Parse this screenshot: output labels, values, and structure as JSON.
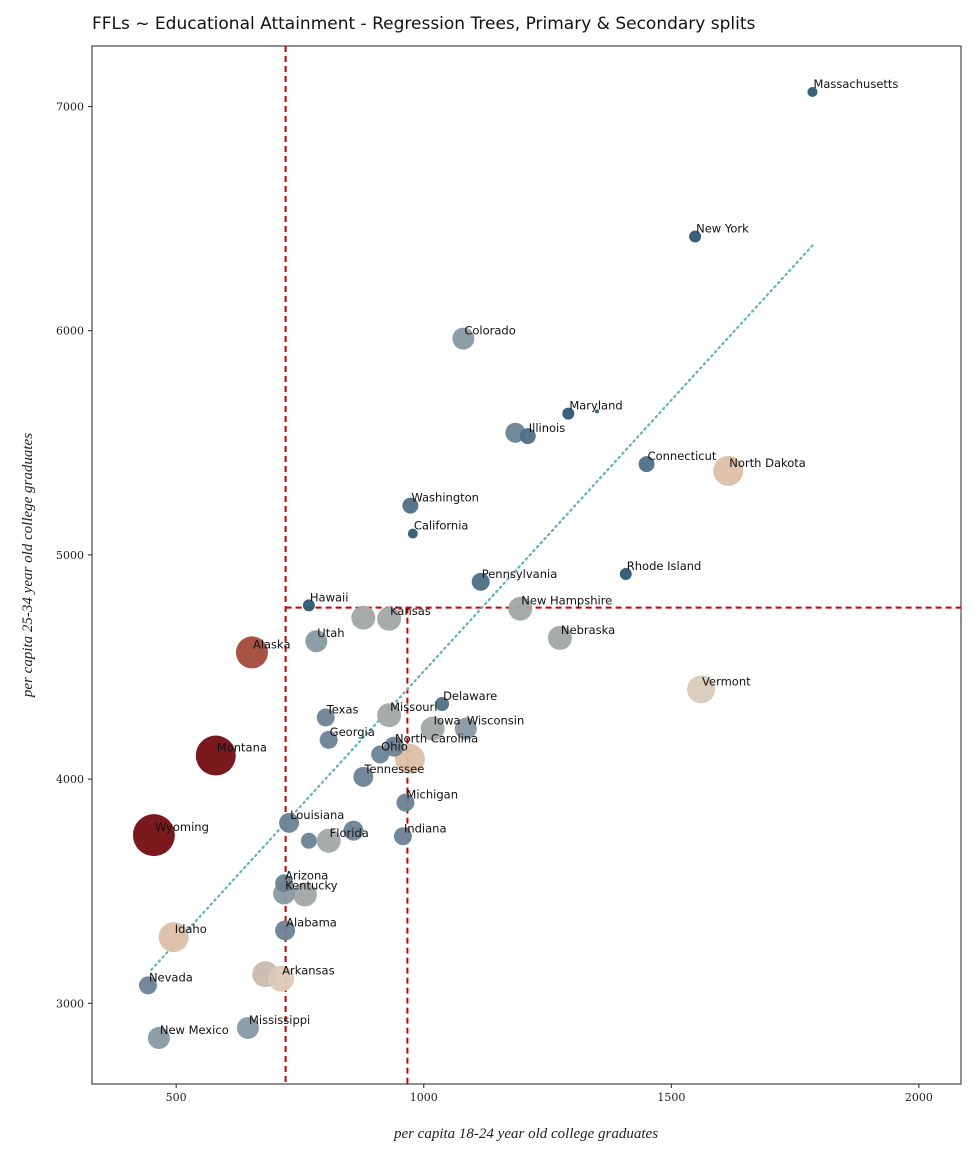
{
  "chart_data": {
    "type": "scatter",
    "title": "FFLs ~ Educational Attainment - Regression Trees, Primary & Secondary splits",
    "xlabel": "per capita 18-24 year old college graduates",
    "ylabel": "per capita 25-34 year old college graduates",
    "xlim": [
      330,
      2085
    ],
    "ylim": [
      2640,
      7270
    ],
    "xticks": [
      500,
      1000,
      1500,
      2000
    ],
    "yticks": [
      3000,
      4000,
      5000,
      6000,
      7000
    ],
    "grid": false,
    "splits": {
      "vertical": [
        721,
        967
      ],
      "horizontal": [
        4765
      ]
    },
    "trend_line": {
      "x": [
        450,
        1785
      ],
      "y": [
        3150,
        6380
      ]
    },
    "colors": {
      "dark_blue": "#2e5874",
      "blue": "#4f6f85",
      "slate": "#6b8292",
      "gray_blue": "#8799a3",
      "gray": "#a2a7a5",
      "beige": "#c9bcae",
      "peach": "#dcbfa7",
      "rust": "#a14a3a",
      "dark_red": "#730d12",
      "split_line": "#cc0000",
      "trend_line": "#5fb3b8"
    },
    "points": [
      {
        "state": "Massachusetts",
        "x": 1785,
        "y": 7065,
        "size": 5,
        "color": "#2e5874",
        "labeled": true
      },
      {
        "state": "New York",
        "x": 1548,
        "y": 6420,
        "size": 6,
        "color": "#2e5874",
        "labeled": true
      },
      {
        "state": "Colorado",
        "x": 1080,
        "y": 5965,
        "size": 11,
        "color": "#8799a3",
        "labeled": true
      },
      {
        "state": "Maryland",
        "x": 1292,
        "y": 5630,
        "size": 6,
        "color": "#2e5874",
        "labeled": true
      },
      {
        "state": "",
        "x": 1350,
        "y": 5640,
        "size": 2,
        "color": "#2e5874",
        "labeled": false
      },
      {
        "state": "Illinois",
        "x": 1210,
        "y": 5530,
        "size": 8,
        "color": "#4f6f85",
        "labeled": true
      },
      {
        "state": "",
        "x": 1185,
        "y": 5545,
        "size": 10,
        "color": "#6b8292",
        "labeled": false
      },
      {
        "state": "Connecticut",
        "x": 1450,
        "y": 5405,
        "size": 8,
        "color": "#4f6f85",
        "labeled": true
      },
      {
        "state": "North Dakota",
        "x": 1615,
        "y": 5375,
        "size": 15,
        "color": "#dcbfa7",
        "labeled": true
      },
      {
        "state": "Washington",
        "x": 973,
        "y": 5220,
        "size": 8,
        "color": "#4f6f85",
        "labeled": true
      },
      {
        "state": "California",
        "x": 978,
        "y": 5095,
        "size": 5,
        "color": "#2e5874",
        "labeled": true
      },
      {
        "state": "Rhode Island",
        "x": 1408,
        "y": 4915,
        "size": 6,
        "color": "#2e5874",
        "labeled": true
      },
      {
        "state": "Pennsylvania",
        "x": 1115,
        "y": 4880,
        "size": 9,
        "color": "#4f6f85",
        "labeled": true
      },
      {
        "state": "Hawaii",
        "x": 768,
        "y": 4775,
        "size": 6,
        "color": "#2e5874",
        "labeled": true
      },
      {
        "state": "New Hampshire",
        "x": 1195,
        "y": 4760,
        "size": 12,
        "color": "#a2a7a5",
        "labeled": true
      },
      {
        "state": "",
        "x": 878,
        "y": 4720,
        "size": 12,
        "color": "#a2a7a5",
        "labeled": false
      },
      {
        "state": "Kansas",
        "x": 930,
        "y": 4715,
        "size": 12,
        "color": "#a2a7a5",
        "labeled": true
      },
      {
        "state": "Utah",
        "x": 783,
        "y": 4615,
        "size": 11,
        "color": "#8799a3",
        "labeled": true
      },
      {
        "state": "Nebraska",
        "x": 1275,
        "y": 4630,
        "size": 12,
        "color": "#a2a7a5",
        "labeled": true
      },
      {
        "state": "Alaska",
        "x": 653,
        "y": 4565,
        "size": 16,
        "color": "#a14a3a",
        "labeled": true
      },
      {
        "state": "Vermont",
        "x": 1560,
        "y": 4400,
        "size": 14,
        "color": "#d8cbbb",
        "labeled": true
      },
      {
        "state": "Delaware",
        "x": 1037,
        "y": 4335,
        "size": 7,
        "color": "#4f6f85",
        "labeled": true
      },
      {
        "state": "Missouri",
        "x": 930,
        "y": 4285,
        "size": 12,
        "color": "#a2a7a5",
        "labeled": true
      },
      {
        "state": "Texas",
        "x": 802,
        "y": 4275,
        "size": 9,
        "color": "#6b8292",
        "labeled": true
      },
      {
        "state": "Iowa",
        "x": 1018,
        "y": 4225,
        "size": 12,
        "color": "#a2a7a5",
        "labeled": true
      },
      {
        "state": "Wisconsin",
        "x": 1085,
        "y": 4225,
        "size": 11,
        "color": "#8799a3",
        "labeled": true
      },
      {
        "state": "Georgia",
        "x": 808,
        "y": 4175,
        "size": 9,
        "color": "#6b8292",
        "labeled": true
      },
      {
        "state": "North Carolina",
        "x": 940,
        "y": 4145,
        "size": 10,
        "color": "#6b8292",
        "labeled": true
      },
      {
        "state": "Ohio",
        "x": 912,
        "y": 4110,
        "size": 9,
        "color": "#6b8292",
        "labeled": true
      },
      {
        "state": "",
        "x": 972,
        "y": 4090,
        "size": 15,
        "color": "#dcbfa7",
        "labeled": false
      },
      {
        "state": "Montana",
        "x": 580,
        "y": 4105,
        "size": 20,
        "color": "#730d12",
        "labeled": true
      },
      {
        "state": "Tennessee",
        "x": 878,
        "y": 4010,
        "size": 10,
        "color": "#6b8292",
        "labeled": true
      },
      {
        "state": "Michigan",
        "x": 963,
        "y": 3895,
        "size": 9,
        "color": "#6b8292",
        "labeled": true
      },
      {
        "state": "Louisiana",
        "x": 728,
        "y": 3805,
        "size": 10,
        "color": "#6b8292",
        "labeled": true
      },
      {
        "state": "",
        "x": 858,
        "y": 3770,
        "size": 10,
        "color": "#6b8292",
        "labeled": false
      },
      {
        "state": "Indiana",
        "x": 958,
        "y": 3745,
        "size": 9,
        "color": "#6b8292",
        "labeled": true
      },
      {
        "state": "Wyoming",
        "x": 455,
        "y": 3750,
        "size": 21,
        "color": "#730d12",
        "labeled": true
      },
      {
        "state": "",
        "x": 768,
        "y": 3725,
        "size": 8,
        "color": "#6b8292",
        "labeled": false
      },
      {
        "state": "Florida",
        "x": 808,
        "y": 3725,
        "size": 12,
        "color": "#a2a7a5",
        "labeled": true
      },
      {
        "state": "Arizona",
        "x": 718,
        "y": 3535,
        "size": 9,
        "color": "#6b8292",
        "labeled": true
      },
      {
        "state": "Kentucky",
        "x": 718,
        "y": 3490,
        "size": 11,
        "color": "#8799a3",
        "labeled": true
      },
      {
        "state": "",
        "x": 760,
        "y": 3485,
        "size": 12,
        "color": "#a2a7a5",
        "labeled": false
      },
      {
        "state": "Alabama",
        "x": 720,
        "y": 3325,
        "size": 10,
        "color": "#6b8292",
        "labeled": true
      },
      {
        "state": "Idaho",
        "x": 495,
        "y": 3295,
        "size": 15,
        "color": "#dcbfa7",
        "labeled": true
      },
      {
        "state": "",
        "x": 680,
        "y": 3130,
        "size": 13,
        "color": "#c9bcae",
        "labeled": false
      },
      {
        "state": "Arkansas",
        "x": 712,
        "y": 3110,
        "size": 13,
        "color": "#dccab8",
        "labeled": true
      },
      {
        "state": "Nevada",
        "x": 443,
        "y": 3080,
        "size": 9,
        "color": "#6b8292",
        "labeled": true
      },
      {
        "state": "Mississippi",
        "x": 645,
        "y": 2890,
        "size": 11,
        "color": "#8799a3",
        "labeled": true
      },
      {
        "state": "New Mexico",
        "x": 465,
        "y": 2845,
        "size": 11,
        "color": "#8799a3",
        "labeled": true
      }
    ]
  }
}
